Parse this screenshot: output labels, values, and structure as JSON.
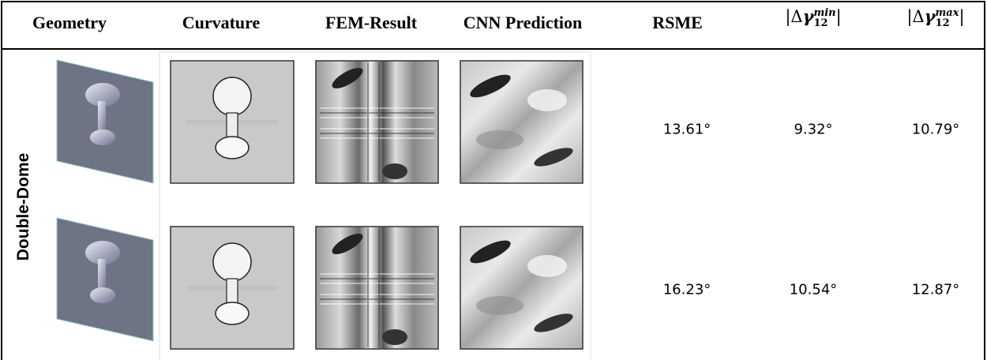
{
  "header": {
    "columns": [
      "Geometry",
      "Curvature",
      "FEM-Result",
      "CNN Prediction",
      "RSME",
      {
        "open": "|Δ",
        "symbol": "γ",
        "subscript": "12",
        "superscript": "min",
        "close": "|"
      },
      {
        "open": "|Δ",
        "symbol": "γ",
        "subscript": "12",
        "superscript": "max",
        "close": "|"
      }
    ]
  },
  "table": {
    "group_label": "Double-Dome",
    "rows": [
      [
        "13.61°",
        "9.32°",
        "10.79°"
      ],
      [
        "16.23°",
        "10.54°",
        "12.87°"
      ]
    ]
  }
}
